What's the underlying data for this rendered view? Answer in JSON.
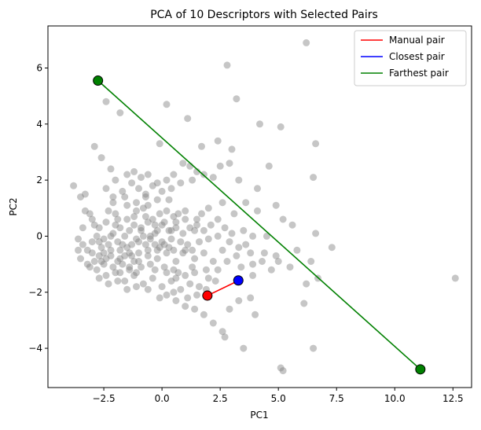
{
  "chart_data": {
    "type": "scatter",
    "title": "PCA of 10 Descriptors with Selected Pairs",
    "xlabel": "PC1",
    "ylabel": "PC2",
    "xlim": [
      -4.9,
      13.3
    ],
    "ylim": [
      -5.4,
      7.5
    ],
    "xticks": [
      -2.5,
      0.0,
      2.5,
      5.0,
      7.5,
      10.0,
      12.5
    ],
    "xtick_labels": [
      "−2.5",
      "0.0",
      "2.5",
      "5.0",
      "7.5",
      "10.0",
      "12.5"
    ],
    "yticks": [
      -4,
      -2,
      0,
      2,
      4,
      6
    ],
    "ytick_labels": [
      "−4",
      "−2",
      "0",
      "2",
      "4",
      "6"
    ],
    "grid": false,
    "legend_position": "top-right",
    "colors": {
      "points": "#808080",
      "manual": "#ff0000",
      "closest": "#0000ff",
      "farthest": "#008000",
      "marker_edge": "#000000"
    },
    "points": [
      [
        6.2,
        6.9
      ],
      [
        2.8,
        6.1
      ],
      [
        3.2,
        4.9
      ],
      [
        0.2,
        4.7
      ],
      [
        -1.8,
        4.4
      ],
      [
        -2.4,
        4.8
      ],
      [
        4.2,
        4.0
      ],
      [
        5.1,
        3.9
      ],
      [
        1.1,
        4.2
      ],
      [
        2.4,
        3.4
      ],
      [
        6.6,
        3.3
      ],
      [
        -2.9,
        3.2
      ],
      [
        -0.1,
        3.3
      ],
      [
        1.7,
        3.2
      ],
      [
        3.0,
        3.1
      ],
      [
        -3.8,
        1.8
      ],
      [
        -3.5,
        1.4
      ],
      [
        -2.6,
        2.8
      ],
      [
        -2.2,
        2.4
      ],
      [
        -2.0,
        2.0
      ],
      [
        -1.5,
        2.2
      ],
      [
        -1.2,
        2.3
      ],
      [
        -0.9,
        2.1
      ],
      [
        -0.6,
        2.2
      ],
      [
        -0.2,
        1.9
      ],
      [
        0.2,
        2.0
      ],
      [
        0.5,
        2.2
      ],
      [
        0.9,
        2.6
      ],
      [
        1.2,
        2.5
      ],
      [
        1.5,
        2.3
      ],
      [
        1.8,
        2.2
      ],
      [
        2.2,
        2.1
      ],
      [
        2.5,
        2.5
      ],
      [
        2.9,
        2.6
      ],
      [
        3.3,
        2.0
      ],
      [
        4.1,
        1.7
      ],
      [
        4.6,
        2.5
      ],
      [
        6.5,
        2.1
      ],
      [
        4.1,
        0.9
      ],
      [
        4.9,
        1.1
      ],
      [
        -3.3,
        0.9
      ],
      [
        -3.0,
        0.6
      ],
      [
        -2.7,
        0.3
      ],
      [
        -2.4,
        0.5
      ],
      [
        -2.1,
        0.1
      ],
      [
        -1.8,
        0.3
      ],
      [
        -1.5,
        0.6
      ],
      [
        -1.2,
        0.4
      ],
      [
        -0.9,
        0.2
      ],
      [
        -0.6,
        0.5
      ],
      [
        -0.3,
        0.1
      ],
      [
        0.0,
        0.4
      ],
      [
        0.3,
        0.2
      ],
      [
        0.6,
        0.5
      ],
      [
        0.9,
        0.1
      ],
      [
        1.2,
        0.3
      ],
      [
        1.5,
        0.6
      ],
      [
        1.8,
        0.2
      ],
      [
        2.1,
        0.4
      ],
      [
        2.4,
        0.0
      ],
      [
        2.7,
        0.3
      ],
      [
        3.0,
        0.1
      ],
      [
        3.5,
        0.2
      ],
      [
        3.9,
        0.0
      ],
      [
        5.2,
        0.6
      ],
      [
        5.6,
        0.4
      ],
      [
        6.6,
        0.1
      ],
      [
        7.3,
        -0.4
      ],
      [
        6.4,
        -0.9
      ],
      [
        5.0,
        -0.9
      ],
      [
        5.5,
        -1.1
      ],
      [
        6.2,
        -1.7
      ],
      [
        6.7,
        -1.5
      ],
      [
        3.3,
        -0.4
      ],
      [
        3.8,
        -0.6
      ],
      [
        4.4,
        -0.6
      ],
      [
        4.9,
        -0.7
      ],
      [
        3.9,
        -1.0
      ],
      [
        3.2,
        -0.7
      ],
      [
        2.6,
        -0.5
      ],
      [
        2.2,
        -0.9
      ],
      [
        1.8,
        -0.6
      ],
      [
        1.4,
        -0.8
      ],
      [
        1.0,
        -0.5
      ],
      [
        0.6,
        -0.9
      ],
      [
        0.2,
        -0.6
      ],
      [
        -0.2,
        -0.8
      ],
      [
        -0.6,
        -0.5
      ],
      [
        -1.0,
        -0.9
      ],
      [
        -1.4,
        -0.6
      ],
      [
        -1.8,
        -0.8
      ],
      [
        -2.2,
        -0.5
      ],
      [
        -2.6,
        -0.9
      ],
      [
        -3.0,
        -0.6
      ],
      [
        -3.4,
        -0.3
      ],
      [
        -3.6,
        -0.5
      ],
      [
        -3.2,
        -1.0
      ],
      [
        -2.8,
        -1.2
      ],
      [
        -2.4,
        -1.4
      ],
      [
        -2.0,
        -1.3
      ],
      [
        -1.6,
        -1.6
      ],
      [
        -1.2,
        -1.4
      ],
      [
        -0.8,
        -1.7
      ],
      [
        -0.4,
        -1.5
      ],
      [
        0.0,
        -1.8
      ],
      [
        0.4,
        -1.6
      ],
      [
        0.8,
        -1.9
      ],
      [
        1.2,
        -1.7
      ],
      [
        1.6,
        -1.8
      ],
      [
        2.0,
        -1.5
      ],
      [
        2.4,
        -1.2
      ],
      [
        0.2,
        -2.1
      ],
      [
        0.6,
        -2.3
      ],
      [
        1.0,
        -2.5
      ],
      [
        1.4,
        -2.6
      ],
      [
        1.8,
        -2.8
      ],
      [
        2.2,
        -3.1
      ],
      [
        2.6,
        -3.4
      ],
      [
        2.9,
        -2.6
      ],
      [
        3.3,
        -2.3
      ],
      [
        3.8,
        -2.2
      ],
      [
        4.0,
        -2.8
      ],
      [
        2.7,
        -3.6
      ],
      [
        3.5,
        -4.0
      ],
      [
        5.1,
        -4.7
      ],
      [
        5.2,
        -4.8
      ],
      [
        6.5,
        -4.0
      ],
      [
        6.1,
        -2.4
      ],
      [
        12.6,
        -1.5
      ],
      [
        -3.3,
        1.5
      ],
      [
        -3.1,
        0.8
      ],
      [
        -2.9,
        0.4
      ],
      [
        -2.7,
        -0.2
      ],
      [
        -2.5,
        -0.6
      ],
      [
        -2.3,
        0.9
      ],
      [
        -2.1,
        1.4
      ],
      [
        -1.9,
        -0.2
      ],
      [
        -1.7,
        -1.0
      ],
      [
        -1.5,
        1.1
      ],
      [
        -1.3,
        -0.3
      ],
      [
        -1.1,
        0.9
      ],
      [
        -0.9,
        -1.1
      ],
      [
        -0.7,
        1.4
      ],
      [
        -0.5,
        -0.1
      ],
      [
        -0.3,
        -1.2
      ],
      [
        -0.1,
        0.8
      ],
      [
        0.1,
        -0.3
      ],
      [
        0.3,
        1.3
      ],
      [
        0.5,
        -1.2
      ],
      [
        0.7,
        0.8
      ],
      [
        -2.0,
        0.8
      ],
      [
        -1.6,
        0.0
      ],
      [
        -1.0,
        -0.2
      ],
      [
        -0.4,
        0.6
      ],
      [
        0.4,
        -0.1
      ],
      [
        1.0,
        0.9
      ],
      [
        1.6,
        -0.2
      ],
      [
        -2.5,
        -0.1
      ],
      [
        -1.8,
        -0.5
      ],
      [
        -1.3,
        -0.7
      ],
      [
        -0.7,
        -0.3
      ],
      [
        -0.1,
        -0.4
      ],
      [
        0.5,
        0.7
      ],
      [
        1.1,
        -0.3
      ],
      [
        1.7,
        0.8
      ],
      [
        -3.0,
        -0.2
      ],
      [
        -2.6,
        -0.4
      ],
      [
        -2.2,
        -0.7
      ],
      [
        -1.9,
        -0.9
      ],
      [
        -1.4,
        -1.1
      ],
      [
        -1.1,
        -1.3
      ],
      [
        -0.5,
        -1.0
      ],
      [
        0.1,
        -1.1
      ],
      [
        0.7,
        -1.3
      ],
      [
        1.3,
        -1.1
      ],
      [
        1.9,
        -1.2
      ],
      [
        -3.5,
        -0.8
      ],
      [
        -3.1,
        -1.1
      ],
      [
        -2.7,
        -1.5
      ],
      [
        -2.3,
        -1.7
      ],
      [
        -1.7,
        1.6
      ],
      [
        -1.3,
        1.9
      ],
      [
        -1.0,
        1.7
      ],
      [
        -0.7,
        1.5
      ],
      [
        -0.4,
        1.8
      ],
      [
        0.0,
        1.6
      ],
      [
        0.4,
        1.7
      ],
      [
        0.8,
        1.9
      ],
      [
        1.3,
        2.0
      ],
      [
        -2.4,
        1.7
      ],
      [
        -2.1,
        1.2
      ],
      [
        -1.6,
        1.4
      ],
      [
        -1.1,
        1.2
      ],
      [
        -0.6,
        1.1
      ],
      [
        -0.2,
        1.3
      ],
      [
        -1.4,
        0.2
      ],
      [
        -0.8,
        0.0
      ],
      [
        -0.2,
        0.2
      ],
      [
        0.3,
        -0.4
      ],
      [
        0.8,
        -0.2
      ],
      [
        1.4,
        0.2
      ],
      [
        2.0,
        -0.1
      ],
      [
        2.4,
        0.6
      ],
      [
        2.9,
        -0.2
      ],
      [
        3.6,
        -0.3
      ],
      [
        4.3,
        -0.9
      ],
      [
        4.7,
        -1.2
      ],
      [
        3.9,
        -1.4
      ],
      [
        3.4,
        -1.1
      ],
      [
        2.8,
        -0.9
      ],
      [
        2.3,
        -1.6
      ],
      [
        1.9,
        -1.9
      ],
      [
        1.5,
        -2.1
      ],
      [
        1.1,
        -2.2
      ],
      [
        0.5,
        -2.0
      ],
      [
        -0.1,
        -2.2
      ],
      [
        -0.6,
        -1.9
      ],
      [
        -1.1,
        -1.8
      ],
      [
        -1.5,
        -1.9
      ],
      [
        -1.9,
        -1.6
      ],
      [
        -2.5,
        -1.0
      ],
      [
        -2.9,
        -0.9
      ],
      [
        -3.2,
        -0.5
      ],
      [
        -3.6,
        -0.1
      ],
      [
        -3.4,
        0.3
      ],
      [
        -2.2,
        0.0
      ],
      [
        -1.7,
        -0.3
      ],
      [
        -1.2,
        0.7
      ],
      [
        -0.8,
        1.0
      ],
      [
        -0.3,
        0.4
      ],
      [
        0.2,
        0.9
      ],
      [
        0.6,
        0.3
      ],
      [
        1.0,
        0.6
      ],
      [
        1.5,
        0.4
      ],
      [
        2.0,
        1.0
      ],
      [
        2.6,
        1.2
      ],
      [
        3.1,
        0.8
      ],
      [
        3.6,
        1.2
      ],
      [
        4.5,
        0.0
      ],
      [
        5.8,
        -0.5
      ],
      [
        -1.0,
        -0.6
      ],
      [
        -0.6,
        -0.7
      ],
      [
        -0.2,
        -0.5
      ],
      [
        0.2,
        -1.3
      ],
      [
        0.6,
        -1.5
      ],
      [
        1.0,
        -1.4
      ],
      [
        1.4,
        -1.3
      ],
      [
        -1.4,
        -1.2
      ],
      [
        -1.8,
        -1.3
      ],
      [
        -2.1,
        -1.1
      ],
      [
        -2.4,
        -0.8
      ],
      [
        -2.7,
        -0.7
      ],
      [
        -2.8,
        0.0
      ],
      [
        -2.0,
        0.4
      ],
      [
        -1.5,
        -0.4
      ],
      [
        -0.9,
        0.3
      ],
      [
        -0.5,
        0.0
      ],
      [
        0.0,
        -0.2
      ],
      [
        0.4,
        0.2
      ],
      [
        0.9,
        -0.6
      ],
      [
        1.3,
        -0.5
      ],
      [
        -1.1,
        -0.1
      ],
      [
        -0.7,
        0.7
      ],
      [
        -0.3,
        -0.3
      ],
      [
        0.1,
        0.5
      ],
      [
        0.5,
        -0.5
      ],
      [
        -2.3,
        -0.3
      ],
      [
        -1.9,
        0.6
      ],
      [
        -1.6,
        -0.7
      ],
      [
        -1.2,
        -0.9
      ]
    ],
    "series": [
      {
        "name": "Manual pair",
        "color": "#ff0000",
        "x": [
          1.95,
          3.25
        ],
        "y": [
          -2.12,
          -1.6
        ]
      },
      {
        "name": "Closest pair",
        "color": "#0000ff",
        "x": [
          3.25,
          3.28
        ],
        "y": [
          -1.6,
          -1.58
        ]
      },
      {
        "name": "Farthest pair",
        "color": "#008000",
        "x": [
          -2.75,
          11.1
        ],
        "y": [
          5.55,
          -4.75
        ]
      }
    ],
    "highlighted_points": [
      {
        "x": -2.75,
        "y": 5.55,
        "color": "#008000"
      },
      {
        "x": 11.1,
        "y": -4.75,
        "color": "#008000"
      },
      {
        "x": 3.28,
        "y": -1.58,
        "color": "#0000ff"
      },
      {
        "x": 1.95,
        "y": -2.12,
        "color": "#ff0000"
      }
    ]
  }
}
